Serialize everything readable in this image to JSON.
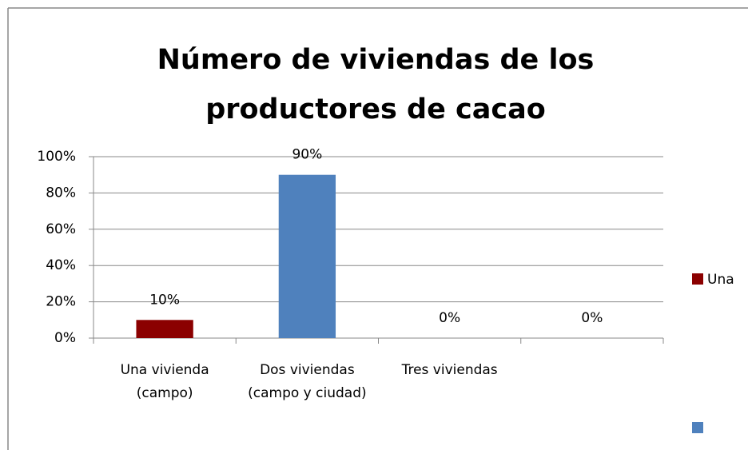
{
  "chart_data": {
    "type": "bar",
    "title": "Número de viviendas de los productores de cacao",
    "categories": [
      "Una vivienda (campo)",
      "Dos viviendas (campo y ciudad)",
      "Tres viviendas",
      null
    ],
    "values": [
      10,
      90,
      0,
      0
    ],
    "value_labels": [
      "10%",
      "90%",
      "0%",
      "0%"
    ],
    "colors": [
      "#8b0000",
      "#4f81bd",
      "#4f81bd",
      "#4f81bd"
    ],
    "ylim": [
      0,
      100
    ],
    "yticks": [
      {
        "value": 0,
        "label": "0%"
      },
      {
        "value": 20,
        "label": "20%"
      },
      {
        "value": 40,
        "label": "40%"
      },
      {
        "value": 60,
        "label": "60%"
      },
      {
        "value": 80,
        "label": "80%"
      },
      {
        "value": 100,
        "label": "100%"
      }
    ],
    "grid": true,
    "legend": [
      {
        "name": "Una",
        "color": "#8b0000"
      },
      {
        "color": "#4f81bd"
      }
    ]
  }
}
